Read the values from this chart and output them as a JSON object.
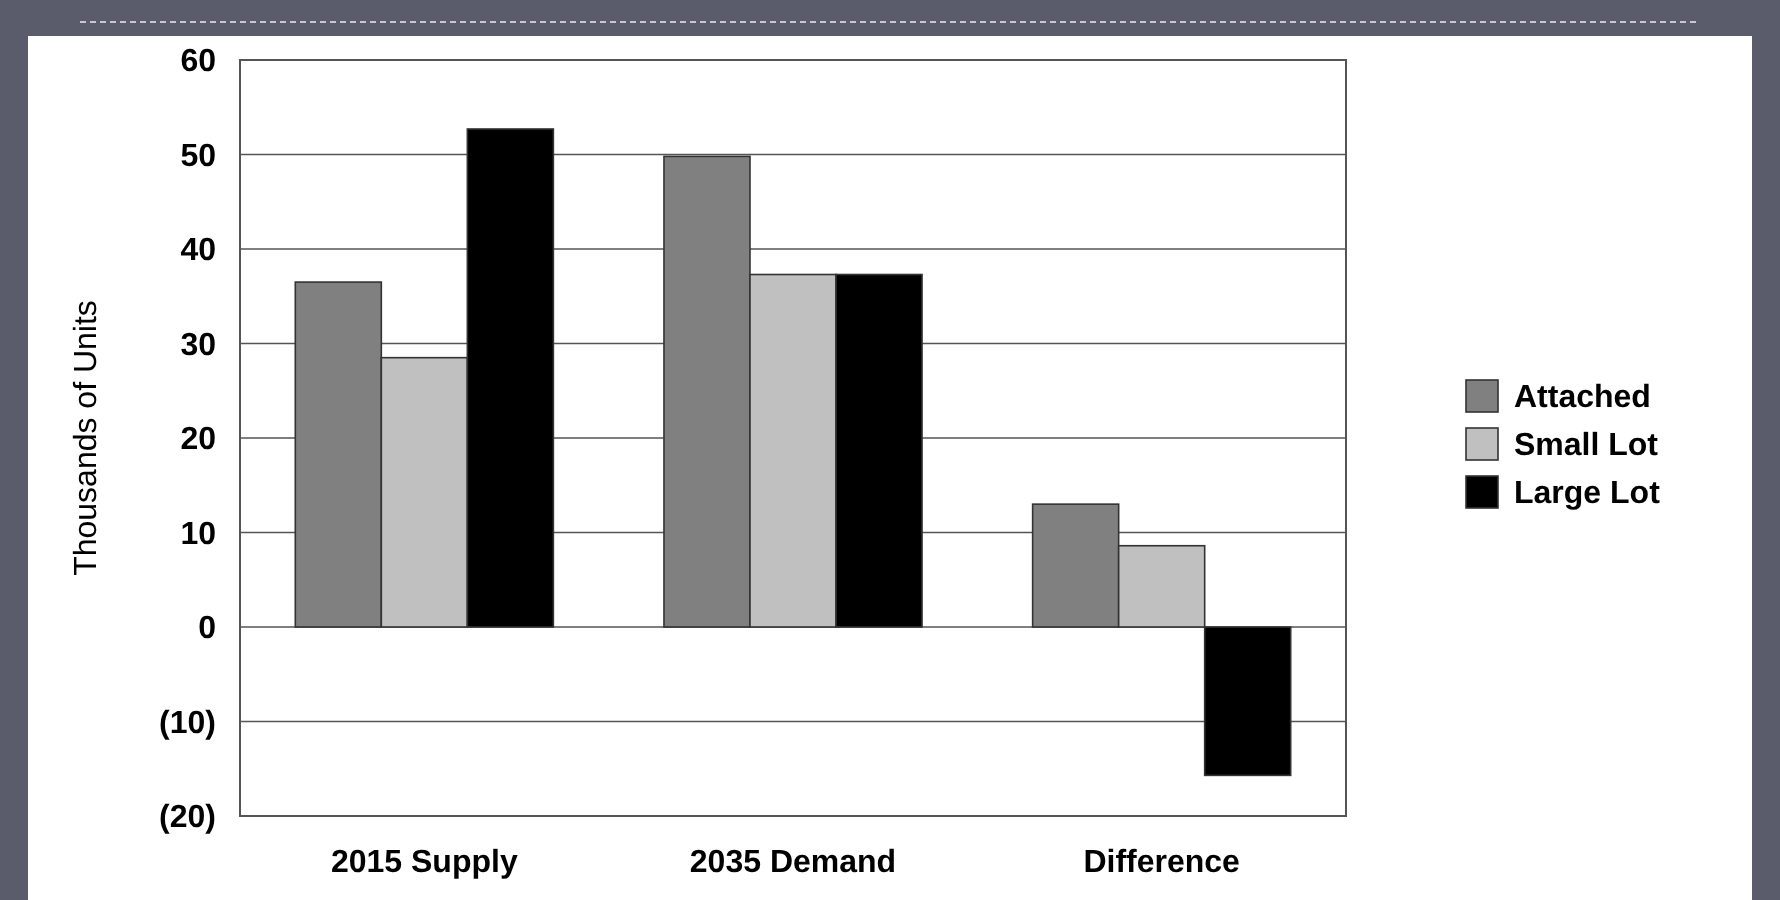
{
  "chart_data": {
    "type": "bar",
    "ylabel": "Thousands of Units",
    "categories": [
      "2015 Supply",
      "2035 Demand",
      "Difference"
    ],
    "series": [
      {
        "name": "Attached",
        "color": "#808080",
        "values": [
          36.5,
          49.8,
          13
        ]
      },
      {
        "name": "Small Lot",
        "color": "#c0c0c0",
        "values": [
          28.5,
          37.3,
          8.6
        ]
      },
      {
        "name": "Large Lot",
        "color": "#000000",
        "values": [
          52.7,
          37.3,
          -15.7
        ]
      }
    ],
    "ylim": [
      -20,
      60
    ],
    "yticks": [
      {
        "value": -20,
        "label": "(20)"
      },
      {
        "value": -10,
        "label": "(10)"
      },
      0,
      10,
      20,
      30,
      40,
      50,
      60
    ],
    "grid": "y",
    "legend": "right"
  }
}
